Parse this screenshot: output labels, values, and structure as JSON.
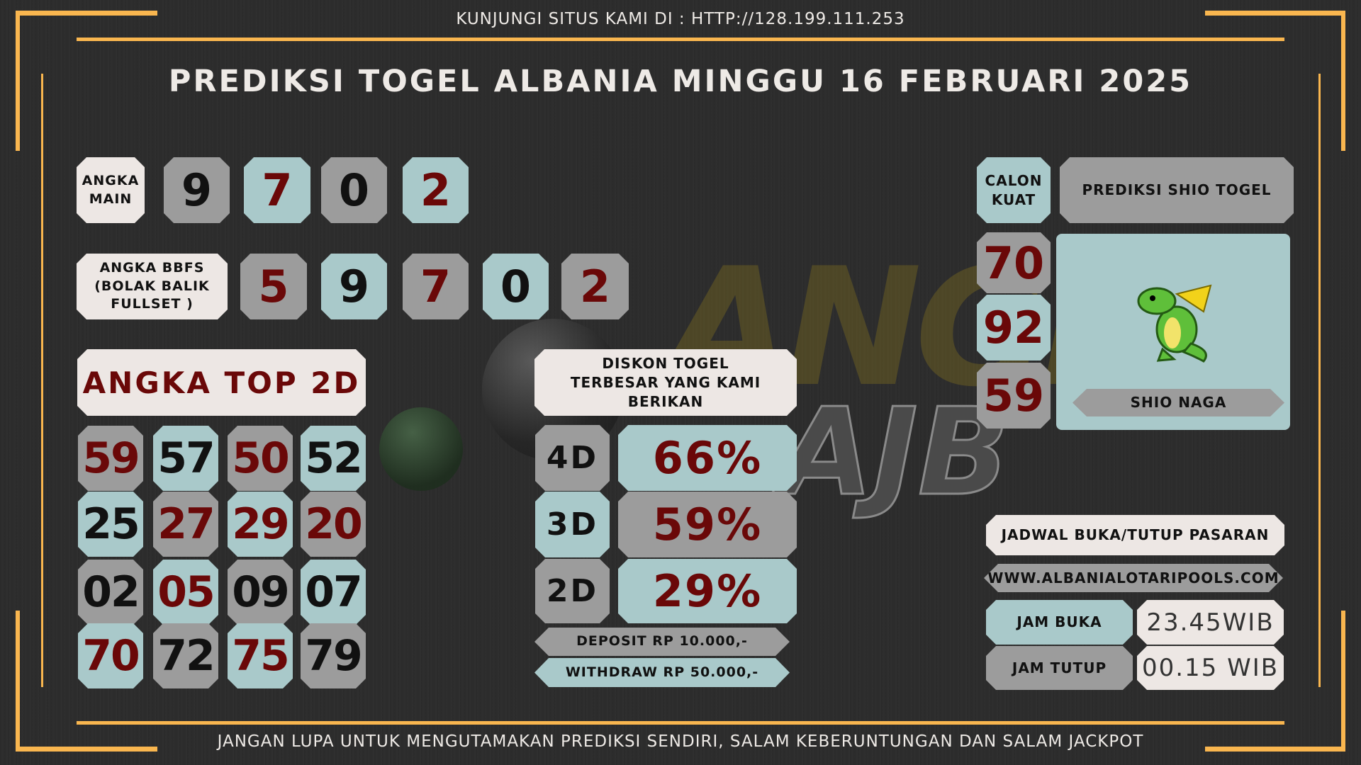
{
  "header": {
    "site_text": "KUNJUNGI SITUS KAMI DI : HTTP://128.199.111.253",
    "title": "PREDIKSI TOGEL ALBANIA MINGGU 16 FEBRUARI 2025"
  },
  "watermark": {
    "text": "ANGKA",
    "subtext": "AJB"
  },
  "angka_main": {
    "label": "ANGKA MAIN",
    "digits": [
      "9",
      "7",
      "0",
      "2"
    ]
  },
  "bbfs": {
    "label": "ANGKA BBFS (BOLAK BALIK FULLSET )",
    "digits": [
      "5",
      "9",
      "7",
      "0",
      "2"
    ]
  },
  "top2d": {
    "label": "ANGKA TOP 2D",
    "rows": [
      [
        "59",
        "57",
        "50",
        "52"
      ],
      [
        "25",
        "27",
        "29",
        "20"
      ],
      [
        "02",
        "05",
        "09",
        "07"
      ],
      [
        "70",
        "72",
        "75",
        "79"
      ]
    ]
  },
  "diskon": {
    "label": "DISKON TOGEL TERBESAR YANG KAMI BERIKAN",
    "items": [
      {
        "type": "4D",
        "value": "66%"
      },
      {
        "type": "3D",
        "value": "59%"
      },
      {
        "type": "2D",
        "value": "29%"
      }
    ],
    "deposit": "DEPOSIT RP 10.000,-",
    "withdraw": "WITHDRAW RP 50.000,-"
  },
  "calon_kuat": {
    "label": "CALON KUAT",
    "numbers": [
      "70",
      "92",
      "59"
    ]
  },
  "shio": {
    "header": "PREDIKSI SHIO TOGEL",
    "name": "SHIO NAGA",
    "icon": "dragon-icon"
  },
  "jadwal": {
    "label": "JADWAL BUKA/TUTUP PASARAN",
    "website": "WWW.ALBANIALOTARIPOOLS.COM",
    "buka_label": "JAM BUKA",
    "buka_value": "23.45WIB",
    "tutup_label": "JAM TUTUP",
    "tutup_value": "00.15 WIB"
  },
  "footer": {
    "text": "JANGAN LUPA UNTUK MENGUTAMAKAN PREDIKSI SENDIRI, SALAM KEBERUNTUNGAN DAN SALAM JACKPOT"
  },
  "colors": {
    "accent": "#f9b64f",
    "light": "#ede7e4",
    "gray": "#9c9c9c",
    "teal": "#a9c9ca",
    "number_red": "#6a0808"
  }
}
